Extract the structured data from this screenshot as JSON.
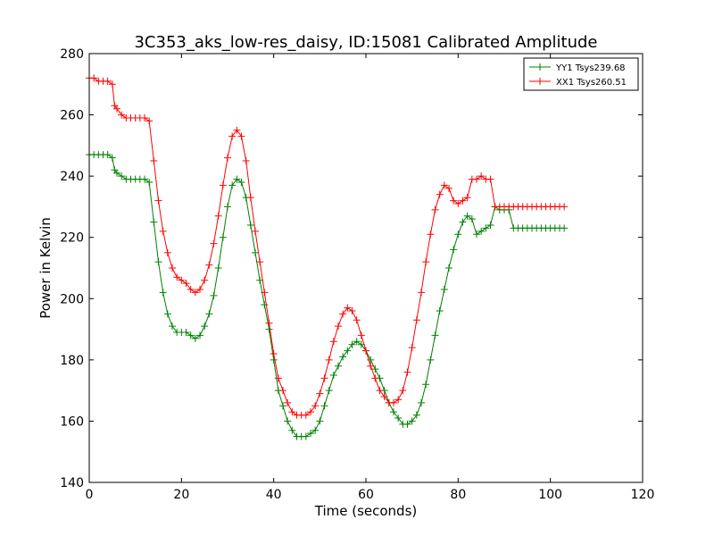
{
  "chart_data": {
    "type": "line",
    "title": "3C353_aks_low-res_daisy, ID:15081 Calibrated Amplitude",
    "xlabel": "Time (seconds)",
    "ylabel": "Power in Kelvin",
    "xlim": [
      0,
      120
    ],
    "ylim": [
      140,
      280
    ],
    "xticks": [
      "0",
      "20",
      "40",
      "60",
      "80",
      "100",
      "120"
    ],
    "yticks": [
      "140",
      "160",
      "180",
      "200",
      "220",
      "240",
      "260",
      "280"
    ],
    "grid": false,
    "legend_position": "top-right",
    "series": [
      {
        "name": "YY1 Tsys239.68",
        "color": "#008000",
        "marker": "plus",
        "x": [
          0,
          1,
          2,
          3,
          4,
          5,
          5.5,
          6,
          7,
          8,
          9,
          10,
          11,
          12,
          13,
          14,
          15,
          16,
          17,
          18,
          19,
          20,
          21,
          22,
          23,
          24,
          25,
          26,
          27,
          28,
          29,
          30,
          31,
          32,
          33,
          34,
          35,
          36,
          37,
          38,
          39,
          40,
          41,
          42,
          43,
          44,
          45,
          46,
          47,
          48,
          49,
          50,
          51,
          52,
          53,
          54,
          55,
          56,
          57,
          58,
          59,
          60,
          61,
          62,
          63,
          64,
          65,
          66,
          67,
          68,
          69,
          70,
          71,
          72,
          73,
          74,
          75,
          76,
          77,
          78,
          79,
          80,
          81,
          82,
          83,
          84,
          85,
          86,
          87,
          88,
          89,
          90,
          91,
          92,
          93,
          94,
          95,
          96,
          97,
          98,
          99,
          100,
          101,
          102,
          103
        ],
        "y": [
          247,
          247,
          247,
          247,
          247,
          246,
          242,
          241,
          240,
          239,
          239,
          239,
          239,
          239,
          238,
          225,
          212,
          202,
          195,
          191,
          189,
          189,
          189,
          188,
          187,
          188,
          191,
          195,
          201,
          210,
          220,
          230,
          237,
          239,
          238,
          233,
          224,
          215,
          206,
          198,
          190,
          180,
          170,
          165,
          160,
          157,
          155,
          155,
          155,
          156,
          157,
          160,
          165,
          170,
          175,
          178,
          181,
          183,
          185,
          186,
          185,
          183,
          180,
          177,
          174,
          170,
          166,
          163,
          161,
          159,
          159,
          160,
          162,
          166,
          172,
          180,
          188,
          196,
          203,
          210,
          216,
          221,
          225,
          227,
          226,
          221,
          222,
          223,
          224,
          230,
          229,
          229,
          229,
          223,
          223,
          223,
          223,
          223,
          223,
          223,
          223,
          223,
          223,
          223,
          223
        ],
        "y_fix_note_removed": null
      },
      {
        "name": "XX1 Tsys260.51",
        "color": "#ff0000",
        "marker": "plus",
        "x": [
          0,
          1,
          2,
          3,
          4,
          5,
          5.5,
          6,
          7,
          8,
          9,
          10,
          11,
          12,
          13,
          14,
          15,
          16,
          17,
          18,
          19,
          20,
          21,
          22,
          23,
          24,
          25,
          26,
          27,
          28,
          29,
          30,
          31,
          32,
          33,
          34,
          35,
          36,
          37,
          38,
          39,
          40,
          41,
          42,
          43,
          44,
          45,
          46,
          47,
          48,
          49,
          50,
          51,
          52,
          53,
          54,
          55,
          56,
          57,
          58,
          59,
          60,
          61,
          62,
          63,
          64,
          65,
          66,
          67,
          68,
          69,
          70,
          71,
          72,
          73,
          74,
          75,
          76,
          77,
          78,
          79,
          80,
          81,
          82,
          83,
          84,
          85,
          86,
          87,
          88,
          89,
          90,
          91,
          92,
          93,
          94,
          95,
          96,
          97,
          98,
          99,
          100,
          101,
          102,
          103
        ],
        "y": [
          272,
          272,
          271,
          271,
          271,
          270,
          263,
          262,
          260,
          259,
          259,
          259,
          259,
          259,
          258,
          245,
          232,
          222,
          215,
          210,
          207,
          206,
          205,
          203,
          202,
          203,
          206,
          211,
          218,
          227,
          237,
          246,
          253,
          255,
          253,
          245,
          233,
          222,
          212,
          202,
          192,
          182,
          174,
          170,
          166,
          163,
          162,
          162,
          162,
          163,
          165,
          169,
          174,
          180,
          186,
          191,
          195,
          197,
          196,
          193,
          188,
          183,
          178,
          174,
          170,
          168,
          166,
          166,
          167,
          170,
          176,
          184,
          193,
          202,
          212,
          221,
          229,
          234,
          237,
          236,
          232,
          231,
          232,
          233,
          239,
          239,
          240,
          239,
          239,
          230,
          230,
          230,
          230,
          230,
          230,
          230,
          230,
          230,
          230,
          230,
          230,
          230,
          230,
          230,
          230
        ]
      }
    ]
  }
}
